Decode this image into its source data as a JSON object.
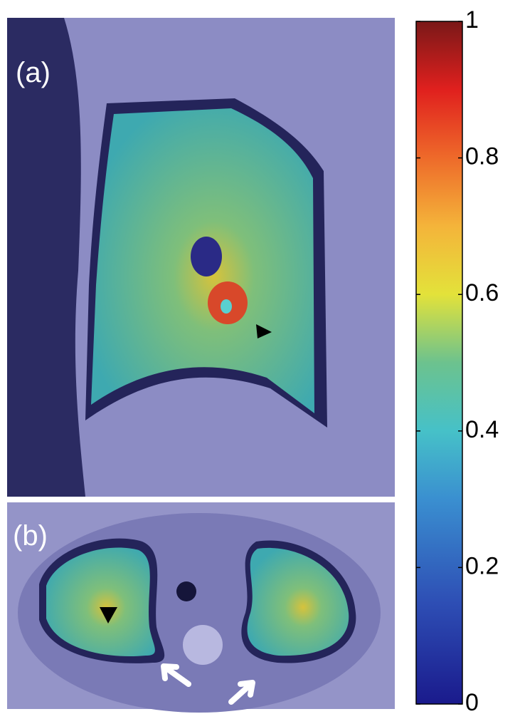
{
  "panels": [
    {
      "label": "(a)"
    },
    {
      "label": "(b)"
    }
  ],
  "colorbar": {
    "lim": [
      0,
      1
    ],
    "ticks": [
      0,
      0.2,
      0.4,
      0.6,
      0.8,
      1
    ]
  }
}
